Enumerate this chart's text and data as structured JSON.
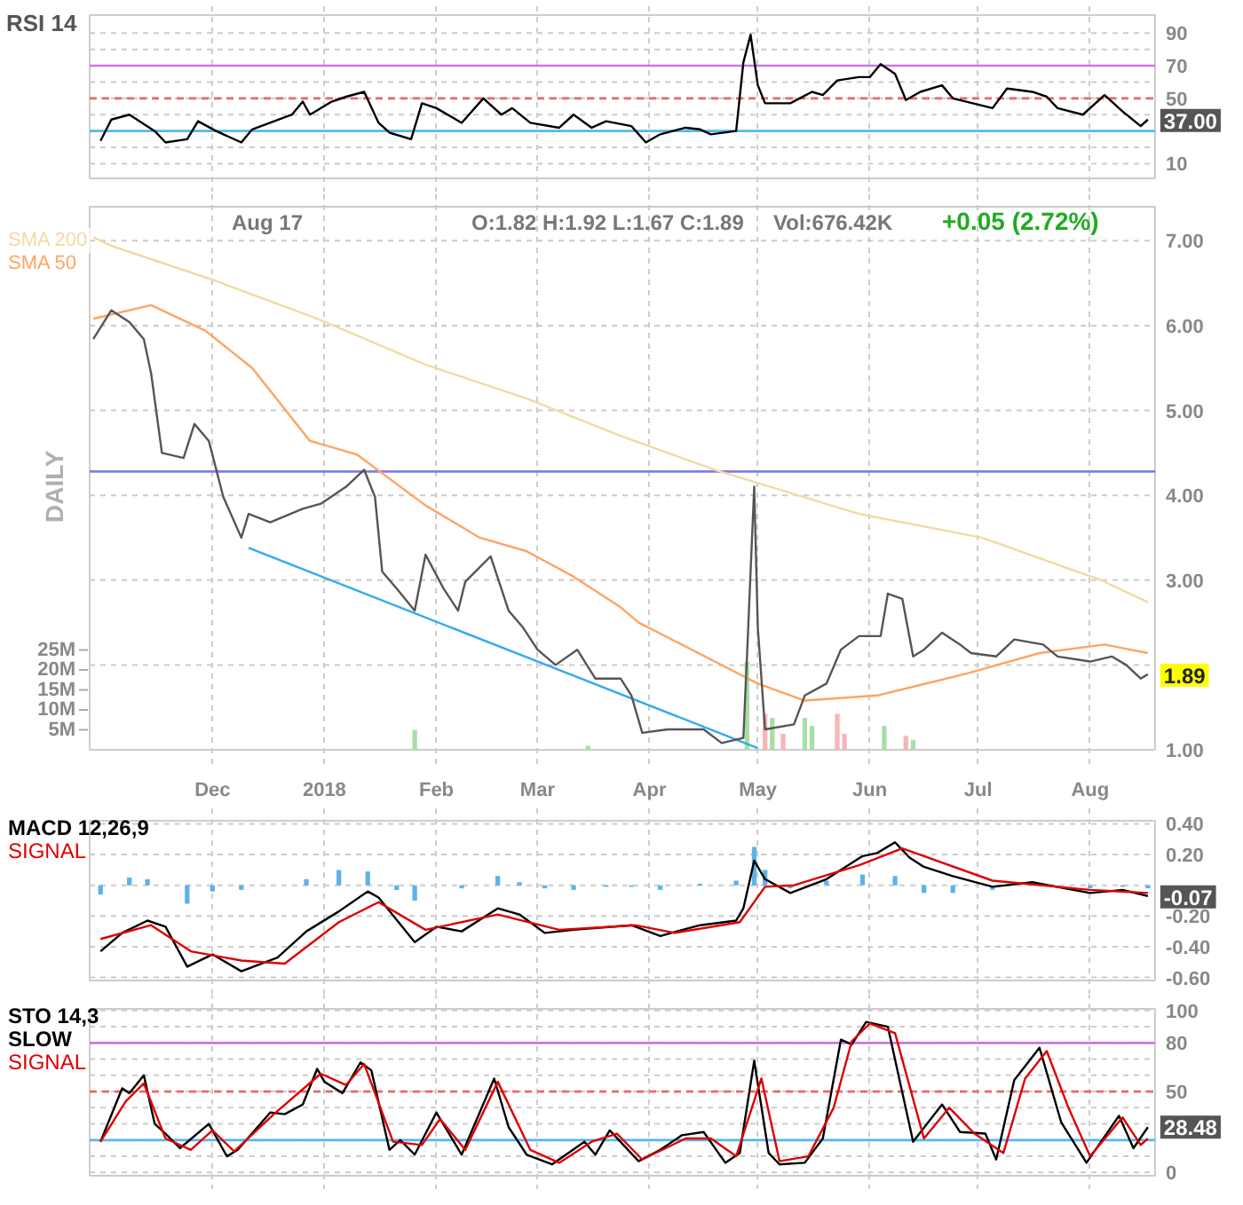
{
  "chart_data": [
    {
      "type": "line",
      "title": "RSI 14",
      "xlim": [
        "2017-10-28",
        "2018-08-19"
      ],
      "xticks": [
        {
          "value": "2017-12-01",
          "label": "Dec"
        },
        {
          "value": "2018-01-01",
          "label": "2018"
        },
        {
          "value": "2018-02-01",
          "label": "Feb"
        },
        {
          "value": "2018-03-01",
          "label": "Mar"
        },
        {
          "value": "2018-04-01",
          "label": "Apr"
        },
        {
          "value": "2018-05-01",
          "label": "May"
        },
        {
          "value": "2018-06-01",
          "label": "Jun"
        },
        {
          "value": "2018-07-01",
          "label": "Jul"
        },
        {
          "value": "2018-08-01",
          "label": "Aug"
        }
      ],
      "tick_labels": "y",
      "ylim": [
        1,
        101
      ],
      "yticks": [
        10,
        {
          "value": 20,
          "label": null
        },
        {
          "value": 30,
          "label": null
        },
        {
          "value": 40,
          "label": null
        },
        50,
        {
          "value": 60,
          "label": null
        },
        70,
        {
          "value": 80,
          "label": null
        },
        90
      ],
      "grid": true,
      "ref_lines": [
        {
          "axis": "y",
          "value": 70,
          "color": "#cc77dd",
          "line_style": "solid"
        },
        {
          "axis": "y",
          "value": 50,
          "color": "#ee6666",
          "line_style": "dashed"
        },
        {
          "axis": "y",
          "value": 30,
          "color": "#55b8ee",
          "line_style": "solid"
        }
      ],
      "annotations": [
        {
          "text": "37.00",
          "x": "2018-08-17",
          "y": 37
        }
      ],
      "series": [
        {
          "color": "#000000",
          "x": [
            "2017-10-31",
            "2017-11-03",
            "2017-11-08",
            "2017-11-15",
            "2017-11-18",
            "2017-11-24",
            "2017-11-27",
            "2017-12-02",
            "2017-12-09",
            "2017-12-12",
            "2017-12-23",
            "2017-12-26",
            "2017-12-28",
            "2018-01-03",
            "2018-01-07",
            "2018-01-12",
            "2018-01-16",
            "2018-01-19",
            "2018-01-25",
            "2018-01-28",
            "2018-02-01",
            "2018-02-08",
            "2018-02-14",
            "2018-02-19",
            "2018-02-22",
            "2018-02-27",
            "2018-03-07",
            "2018-03-11",
            "2018-03-16",
            "2018-03-20",
            "2018-03-27",
            "2018-03-31",
            "2018-04-04",
            "2018-04-11",
            "2018-04-15",
            "2018-04-18",
            "2018-04-25",
            "2018-04-27",
            "2018-04-29",
            "2018-05-01",
            "2018-05-03",
            "2018-05-10",
            "2018-05-16",
            "2018-05-19",
            "2018-05-23",
            "2018-05-29",
            "2018-06-01",
            "2018-06-04",
            "2018-06-08",
            "2018-06-11",
            "2018-06-15",
            "2018-06-21",
            "2018-06-24",
            "2018-07-05",
            "2018-07-09",
            "2018-07-16",
            "2018-07-20",
            "2018-07-23",
            "2018-07-30",
            "2018-08-05",
            "2018-08-10",
            "2018-08-15",
            "2018-08-17"
          ],
          "values": [
            24,
            37,
            40,
            30,
            23,
            25,
            36,
            30,
            23,
            31,
            40,
            48,
            40,
            48,
            51,
            54,
            35,
            29,
            25,
            47,
            44,
            35,
            50,
            40,
            44,
            35,
            32,
            40,
            32,
            36,
            33,
            23,
            28,
            32,
            31,
            28,
            30,
            72,
            89,
            58,
            47,
            47,
            54,
            52,
            61,
            63,
            63,
            71,
            65,
            49,
            54,
            58,
            50,
            44,
            56,
            54,
            51,
            44,
            40,
            52,
            42,
            33,
            37
          ]
        }
      ]
    },
    {
      "type": "line",
      "xlim": [
        "2017-10-28",
        "2018-08-19"
      ],
      "xticks": [
        {
          "value": "2017-12-01",
          "label": "Dec"
        },
        {
          "value": "2018-01-01",
          "label": "2018"
        },
        {
          "value": "2018-02-01",
          "label": "Feb"
        },
        {
          "value": "2018-03-01",
          "label": "Mar"
        },
        {
          "value": "2018-04-01",
          "label": "Apr"
        },
        {
          "value": "2018-05-01",
          "label": "May"
        },
        {
          "value": "2018-06-01",
          "label": "Jun"
        },
        {
          "value": "2018-07-01",
          "label": "Jul"
        },
        {
          "value": "2018-08-01",
          "label": "Aug"
        }
      ],
      "ylim": [
        1,
        7.4
      ],
      "yticks": [
        {
          "value": 1,
          "label": "1.00"
        },
        {
          "value": 2,
          "label": null
        },
        {
          "value": 3,
          "label": "3.00"
        },
        {
          "value": 4,
          "label": "4.00"
        },
        {
          "value": 5,
          "label": "5.00"
        },
        {
          "value": 6,
          "label": "6.00"
        },
        {
          "value": 7,
          "label": "7.00"
        }
      ],
      "y2lim": [
        0,
        136
      ],
      "y2ticks": [
        {
          "value": 5,
          "label": "5M"
        },
        {
          "value": 10,
          "label": "10M"
        },
        {
          "value": 15,
          "label": "15M"
        },
        {
          "value": 20,
          "label": "20M"
        },
        {
          "value": 25,
          "label": "25M"
        }
      ],
      "grid": true,
      "ref_lines": [
        {
          "axis": "y",
          "value": 4.28,
          "color": "#7f7fe0",
          "line_style": "solid"
        }
      ],
      "annotations": [
        "Aug 17",
        "O:1.82 H:1.92 L:1.67 C:1.89",
        "Vol:676.42K",
        "+0.05 (2.72%)",
        "DAILY",
        {
          "text": "1.89",
          "x": "2018-08-17",
          "y": 1.89
        }
      ],
      "series": [
        {
          "type": "bar",
          "axis": "y2",
          "x": [
            "2018-01-26",
            "2018-03-15",
            "2018-04-28",
            "2018-05-03",
            "2018-05-05",
            "2018-05-08",
            "2018-05-14",
            "2018-05-16",
            "2018-05-23",
            "2018-05-25",
            "2018-06-05",
            "2018-06-11",
            "2018-06-13"
          ],
          "values": [
            5,
            1,
            22,
            9,
            8,
            4,
            8,
            6,
            9,
            4,
            6,
            3.5,
            2.5
          ],
          "colors": [
            "#a8dea8",
            "#a8dea8",
            "#a8dea8",
            "#f7b5b5",
            "#a8dea8",
            "#f7b5b5",
            "#a8dea8",
            "#a8dea8",
            "#f7b5b5",
            "#f7b5b5",
            "#a8dea8",
            "#f7b5b5",
            "#a8dea8"
          ]
        },
        {
          "name": "SMA 200",
          "color": "#f3d9a4",
          "x": [
            "2017-10-29",
            "2017-11-03",
            "2017-12-01",
            "2017-12-30",
            "2018-01-29",
            "2018-02-26",
            "2018-03-24",
            "2018-04-19",
            "2018-05-29",
            "2018-07-02",
            "2018-08-04",
            "2018-08-17"
          ],
          "values": [
            7.04,
            6.94,
            6.54,
            6.08,
            5.54,
            5.14,
            4.7,
            4.3,
            3.78,
            3.5,
            3.0,
            2.74
          ]
        },
        {
          "name": "SMA 50",
          "color": "#ffa463",
          "x": [
            "2017-10-29",
            "2017-11-14",
            "2017-11-29",
            "2017-12-12",
            "2017-12-28",
            "2018-01-10",
            "2018-01-29",
            "2018-02-13",
            "2018-02-26",
            "2018-03-11",
            "2018-03-24",
            "2018-03-29",
            "2018-05-01",
            "2018-05-14",
            "2018-06-03",
            "2018-06-28",
            "2018-07-18",
            "2018-08-05",
            "2018-08-17"
          ],
          "values": [
            6.08,
            6.24,
            5.94,
            5.5,
            4.64,
            4.48,
            3.88,
            3.5,
            3.34,
            3.04,
            2.68,
            2.5,
            1.78,
            1.58,
            1.64,
            1.9,
            2.14,
            2.24,
            2.14
          ]
        },
        {
          "color": "#33aaee",
          "x": [
            "2017-12-11",
            "2018-05-01"
          ],
          "values": [
            3.38,
            1.02
          ]
        },
        {
          "color": "#555555",
          "x": [
            "2017-10-29",
            "2017-11-03",
            "2017-11-08",
            "2017-11-12",
            "2017-11-14",
            "2017-11-17",
            "2017-11-23",
            "2017-11-26",
            "2017-11-30",
            "2017-12-04",
            "2017-12-09",
            "2017-12-11",
            "2017-12-17",
            "2017-12-26",
            "2017-12-31",
            "2018-01-07",
            "2018-01-12",
            "2018-01-15",
            "2018-01-17",
            "2018-01-21",
            "2018-01-26",
            "2018-01-29",
            "2018-02-03",
            "2018-02-07",
            "2018-02-09",
            "2018-02-16",
            "2018-02-21",
            "2018-02-25",
            "2018-03-01",
            "2018-03-06",
            "2018-03-12",
            "2018-03-17",
            "2018-03-24",
            "2018-03-27",
            "2018-03-30",
            "2018-04-06",
            "2018-04-16",
            "2018-04-21",
            "2018-04-27",
            "2018-04-28",
            "2018-04-30",
            "2018-05-01",
            "2018-05-03",
            "2018-05-11",
            "2018-05-14",
            "2018-05-20",
            "2018-05-24",
            "2018-05-29",
            "2018-06-04",
            "2018-06-06",
            "2018-06-10",
            "2018-06-13",
            "2018-06-16",
            "2018-06-21",
            "2018-06-26",
            "2018-06-29",
            "2018-07-06",
            "2018-07-11",
            "2018-07-19",
            "2018-07-23",
            "2018-08-01",
            "2018-08-07",
            "2018-08-11",
            "2018-08-15",
            "2018-08-17"
          ],
          "values": [
            5.84,
            6.18,
            6.04,
            5.84,
            5.44,
            4.5,
            4.44,
            4.84,
            4.64,
            3.98,
            3.5,
            3.78,
            3.68,
            3.84,
            3.9,
            4.1,
            4.3,
            3.98,
            3.1,
            2.9,
            2.64,
            3.3,
            2.9,
            2.64,
            2.98,
            3.28,
            2.64,
            2.44,
            2.18,
            2.0,
            2.18,
            1.84,
            1.84,
            1.64,
            1.2,
            1.24,
            1.24,
            1.08,
            1.14,
            2.1,
            4.1,
            2.44,
            1.24,
            1.3,
            1.64,
            1.78,
            2.18,
            2.34,
            2.34,
            2.84,
            2.78,
            2.1,
            2.18,
            2.38,
            2.24,
            2.14,
            2.1,
            2.3,
            2.24,
            2.1,
            2.04,
            2.1,
            2.0,
            1.84,
            1.89
          ]
        }
      ]
    },
    {
      "type": "line",
      "xlim": [
        "2017-10-28",
        "2018-08-19"
      ],
      "xticks": [
        {
          "value": "2017-12-01",
          "label": "Dec"
        },
        {
          "value": "2018-01-01",
          "label": "2018"
        },
        {
          "value": "2018-02-01",
          "label": "Feb"
        },
        {
          "value": "2018-03-01",
          "label": "Mar"
        },
        {
          "value": "2018-04-01",
          "label": "Apr"
        },
        {
          "value": "2018-05-01",
          "label": "May"
        },
        {
          "value": "2018-06-01",
          "label": "Jun"
        },
        {
          "value": "2018-07-01",
          "label": "Jul"
        },
        {
          "value": "2018-08-01",
          "label": "Aug"
        }
      ],
      "tick_labels": "y",
      "ylim": [
        -0.62,
        0.42
      ],
      "yticks": [
        {
          "value": -0.6,
          "label": "-0.60"
        },
        {
          "value": -0.4,
          "label": "-0.40"
        },
        {
          "value": -0.2,
          "label": "-0.20"
        },
        {
          "value": 0,
          "label": null
        },
        {
          "value": 0.2,
          "label": "0.20"
        },
        {
          "value": 0.4,
          "label": "0.40"
        }
      ],
      "grid": true,
      "annotations": [
        {
          "text": "-0.07",
          "x": "2018-08-17",
          "y": -0.07
        }
      ],
      "series": [
        {
          "type": "bar",
          "color": "#5cb3e6",
          "x": [
            "2017-10-31",
            "2017-11-08",
            "2017-11-13",
            "2017-11-18",
            "2017-11-24",
            "2017-12-01",
            "2017-12-09",
            "2017-12-19",
            "2017-12-27",
            "2018-01-05",
            "2018-01-13",
            "2018-01-21",
            "2018-01-26",
            "2018-02-01",
            "2018-02-08",
            "2018-02-18",
            "2018-02-24",
            "2018-03-03",
            "2018-03-11",
            "2018-03-20",
            "2018-03-27",
            "2018-04-04",
            "2018-04-15",
            "2018-04-25",
            "2018-04-30",
            "2018-05-03",
            "2018-05-10",
            "2018-05-20",
            "2018-05-30",
            "2018-06-08",
            "2018-06-16",
            "2018-06-24",
            "2018-07-05",
            "2018-07-16",
            "2018-08-01",
            "2018-08-10",
            "2018-08-17"
          ],
          "values": [
            -0.06,
            0.05,
            0.04,
            0.0,
            -0.12,
            -0.04,
            -0.03,
            0.0,
            0.04,
            0.1,
            0.09,
            -0.03,
            -0.1,
            0.0,
            -0.02,
            0.06,
            0.02,
            -0.02,
            -0.03,
            -0.01,
            -0.01,
            -0.03,
            0.01,
            0.03,
            0.25,
            0.1,
            -0.02,
            0.03,
            0.07,
            0.06,
            -0.05,
            -0.05,
            -0.03,
            0.0,
            -0.02,
            -0.01,
            -0.02
          ]
        },
        {
          "name": "MACD 12,26,9",
          "color": "#000000",
          "x": [
            "2017-10-31",
            "2017-11-06",
            "2017-11-13",
            "2017-11-18",
            "2017-11-24",
            "2017-12-01",
            "2017-12-09",
            "2017-12-19",
            "2017-12-27",
            "2018-01-05",
            "2018-01-13",
            "2018-01-16",
            "2018-01-26",
            "2018-02-01",
            "2018-02-08",
            "2018-02-18",
            "2018-02-24",
            "2018-03-03",
            "2018-03-11",
            "2018-03-27",
            "2018-04-04",
            "2018-04-15",
            "2018-04-25",
            "2018-04-27",
            "2018-04-30",
            "2018-05-03",
            "2018-05-10",
            "2018-05-20",
            "2018-05-30",
            "2018-06-03",
            "2018-06-08",
            "2018-06-12",
            "2018-06-16",
            "2018-06-24",
            "2018-07-05",
            "2018-07-16",
            "2018-08-01",
            "2018-08-10",
            "2018-08-17"
          ],
          "values": [
            -0.43,
            -0.31,
            -0.23,
            -0.27,
            -0.53,
            -0.45,
            -0.56,
            -0.47,
            -0.3,
            -0.17,
            -0.04,
            -0.08,
            -0.37,
            -0.27,
            -0.3,
            -0.15,
            -0.19,
            -0.31,
            -0.29,
            -0.26,
            -0.33,
            -0.26,
            -0.23,
            -0.15,
            0.16,
            0.04,
            -0.05,
            0.04,
            0.19,
            0.21,
            0.28,
            0.18,
            0.12,
            0.06,
            -0.01,
            0.02,
            -0.05,
            -0.03,
            -0.07
          ]
        },
        {
          "name": "SIGNAL",
          "color": "#dd0000",
          "x": [
            "2017-10-31",
            "2017-11-14",
            "2017-11-25",
            "2017-12-09",
            "2017-12-21",
            "2018-01-05",
            "2018-01-16",
            "2018-01-29",
            "2018-02-18",
            "2018-03-07",
            "2018-03-28",
            "2018-04-08",
            "2018-04-26",
            "2018-05-03",
            "2018-05-11",
            "2018-05-29",
            "2018-06-10",
            "2018-07-05",
            "2018-08-01",
            "2018-08-17"
          ],
          "values": [
            -0.35,
            -0.26,
            -0.43,
            -0.49,
            -0.51,
            -0.24,
            -0.11,
            -0.29,
            -0.19,
            -0.29,
            -0.26,
            -0.31,
            -0.24,
            -0.01,
            0.0,
            0.13,
            0.24,
            0.03,
            -0.03,
            -0.05
          ]
        }
      ]
    },
    {
      "type": "line",
      "xlim": [
        "2017-10-28",
        "2018-08-19"
      ],
      "xticks": [
        {
          "value": "2017-12-01",
          "label": "Dec"
        },
        {
          "value": "2018-01-01",
          "label": "2018"
        },
        {
          "value": "2018-02-01",
          "label": "Feb"
        },
        {
          "value": "2018-03-01",
          "label": "Mar"
        },
        {
          "value": "2018-04-01",
          "label": "Apr"
        },
        {
          "value": "2018-05-01",
          "label": "May"
        },
        {
          "value": "2018-06-01",
          "label": "Jun"
        },
        {
          "value": "2018-07-01",
          "label": "Jul"
        },
        {
          "value": "2018-08-01",
          "label": "Aug"
        }
      ],
      "tick_labels": "y",
      "ylim": [
        -2,
        101
      ],
      "yticks": [
        0,
        {
          "value": 10,
          "label": null
        },
        {
          "value": 20,
          "label": null
        },
        {
          "value": 30,
          "label": null
        },
        {
          "value": 40,
          "label": null
        },
        50,
        {
          "value": 60,
          "label": null
        },
        {
          "value": 70,
          "label": null
        },
        80,
        {
          "value": 90,
          "label": null
        },
        100
      ],
      "grid": true,
      "ref_lines": [
        {
          "axis": "y",
          "value": 80,
          "color": "#cc77dd",
          "line_style": "solid"
        },
        {
          "axis": "y",
          "value": 50,
          "color": "#ee6666",
          "line_style": "dashed"
        },
        {
          "axis": "y",
          "value": 20,
          "color": "#55b8ee",
          "line_style": "solid"
        }
      ],
      "annotations": [
        {
          "text": "28.48",
          "x": "2018-08-17",
          "y": 28.48
        }
      ],
      "series": [
        {
          "name": "STO 14,3 SLOW",
          "color": "#000000",
          "x": [
            "2017-10-31",
            "2017-11-06",
            "2017-11-08",
            "2017-11-12",
            "2017-11-15",
            "2017-11-18",
            "2017-11-22",
            "2017-11-30",
            "2017-12-05",
            "2017-12-08",
            "2017-12-17",
            "2017-12-21",
            "2017-12-26",
            "2017-12-30",
            "2018-01-01",
            "2018-01-06",
            "2018-01-11",
            "2018-01-14",
            "2018-01-19",
            "2018-01-22",
            "2018-01-26",
            "2018-02-01",
            "2018-02-08",
            "2018-02-17",
            "2018-02-21",
            "2018-02-26",
            "2018-03-05",
            "2018-03-14",
            "2018-03-17",
            "2018-03-21",
            "2018-03-29",
            "2018-04-04",
            "2018-04-10",
            "2018-04-16",
            "2018-04-22",
            "2018-04-26",
            "2018-04-30",
            "2018-05-04",
            "2018-05-07",
            "2018-05-14",
            "2018-05-19",
            "2018-05-24",
            "2018-05-27",
            "2018-05-31",
            "2018-06-06",
            "2018-06-13",
            "2018-06-21",
            "2018-06-26",
            "2018-07-03",
            "2018-07-06",
            "2018-07-11",
            "2018-07-18",
            "2018-07-24",
            "2018-07-31",
            "2018-08-09",
            "2018-08-13",
            "2018-08-17"
          ],
          "values": [
            19,
            52,
            49,
            60,
            30,
            24,
            15,
            30,
            10,
            14,
            37,
            36,
            42,
            64,
            56,
            49,
            68,
            63,
            14,
            20,
            11,
            37,
            11,
            58,
            28,
            11,
            5,
            19,
            11,
            26,
            7,
            14,
            23,
            25,
            6,
            12,
            69,
            12,
            5,
            6,
            21,
            82,
            79,
            93,
            90,
            19,
            42,
            25,
            24,
            8,
            57,
            77,
            31,
            6,
            35,
            15,
            28
          ]
        },
        {
          "name": "SIGNAL",
          "color": "#dd0000",
          "x": [
            "2017-10-31",
            "2017-11-07",
            "2017-11-12",
            "2017-11-18",
            "2017-11-25",
            "2017-12-01",
            "2017-12-07",
            "2017-12-18",
            "2017-12-31",
            "2018-01-07",
            "2018-01-12",
            "2018-01-20",
            "2018-01-28",
            "2018-02-02",
            "2018-02-09",
            "2018-02-18",
            "2018-02-27",
            "2018-03-07",
            "2018-03-16",
            "2018-03-23",
            "2018-03-30",
            "2018-04-11",
            "2018-04-18",
            "2018-04-25",
            "2018-05-02",
            "2018-05-07",
            "2018-05-15",
            "2018-05-22",
            "2018-05-27",
            "2018-06-01",
            "2018-06-08",
            "2018-06-16",
            "2018-06-23",
            "2018-06-30",
            "2018-07-08",
            "2018-07-14",
            "2018-07-20",
            "2018-07-26",
            "2018-08-01",
            "2018-08-10",
            "2018-08-15",
            "2018-08-17"
          ],
          "values": [
            19,
            44,
            55,
            21,
            14,
            26,
            13,
            36,
            61,
            54,
            67,
            19,
            17,
            33,
            14,
            56,
            14,
            6,
            19,
            24,
            8,
            21,
            21,
            10,
            58,
            7,
            10,
            40,
            81,
            92,
            86,
            21,
            40,
            24,
            12,
            58,
            75,
            40,
            10,
            34,
            17,
            21
          ]
        }
      ]
    }
  ]
}
